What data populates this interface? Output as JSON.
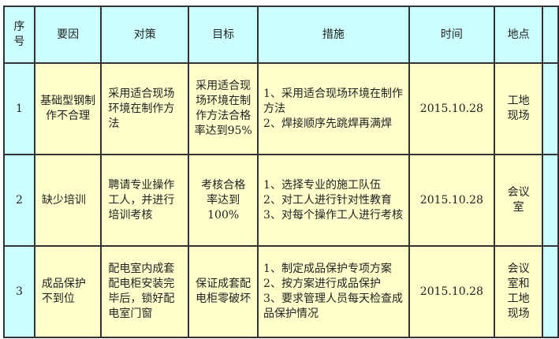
{
  "headers": [
    "序号",
    "要因",
    "对策",
    "目标",
    "措施",
    "时间",
    "地点"
  ],
  "rows": [
    {
      "index": "1",
      "cause": "基础型钢制作不合理",
      "countermeasure": "采用适合现场环境在制作方法",
      "target": "采用适合现场环境在制作方法合格率达到95%",
      "measures": "1、采用适合现场环境在制作方法\n2、焊接顺序先跳焊再满焊",
      "time": "2015.10.28",
      "place": "工地现场"
    },
    {
      "index": "2",
      "cause": "缺少培训",
      "countermeasure": "聘请专业操作工人，并进行培训考核",
      "target": "考核合格率达到100%",
      "measures": "1、选择专业的施工队伍\n2、对工人进行针对性教育\n3、对每个操作工人进行考核",
      "time": "2015.10.28",
      "place": "会议室"
    },
    {
      "index": "3",
      "cause": "成品保护不到位",
      "countermeasure": "配电室内成套配电柜安装完毕后，锁好配电室门窗",
      "target": "保证成套配电柜零破坏",
      "measures": "1、制定成品保护专项方案\n2、按方案进行成品保护\n3、要求管理人员每天检查成品保护情况",
      "time": "2015.10.28",
      "place": "会议室和工地现场"
    }
  ],
  "colors": {
    "header_bg": "#ccffff",
    "body_bg": "#ffffcc",
    "border": "#333333"
  }
}
